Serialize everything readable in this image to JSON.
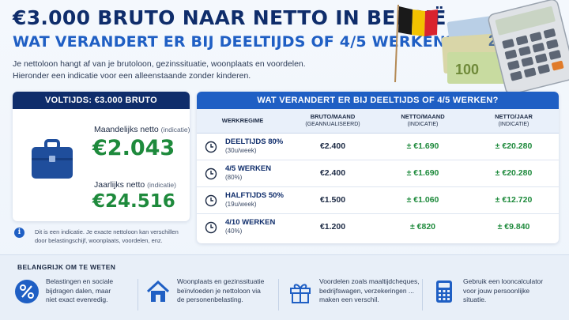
{
  "header": {
    "title": "€3.000 BRUTO NAAR NETTO IN BELGIË",
    "subtitle": "WAT VERANDERT ER BIJ DEELTIJDS OF 4/5 WERKEN?",
    "intro_line1": "Je nettoloon hangt af van je brutoloon, gezinssituatie, woonplaats en voordelen.",
    "intro_line2": "Hieronder een indicatie voor een alleenstaande zonder kinderen."
  },
  "hero": {
    "banknote_label": "100",
    "banknote_label2": "20",
    "calculator_display": ""
  },
  "fulltime": {
    "heading": "VOLTIJDS: €3.000 BRUTO",
    "monthly_label": "Maandelijks netto",
    "monthly_hint": "(indicatie)",
    "monthly_value": "€2.043",
    "yearly_label": "Jaarlijks netto",
    "yearly_hint": "(indicatie)",
    "yearly_value": "€24.516"
  },
  "note": {
    "icon": "i",
    "line1": "Dit is een indicatie. Je exacte nettoloon kan verschillen",
    "line2": "door belastingschijf, woonplaats, voordelen, enz."
  },
  "table": {
    "heading": "WAT VERANDERT ER BIJ DEELTIJDS OF 4/5 WERKEN?",
    "columns": [
      {
        "label": "WERKREGIME",
        "sub": ""
      },
      {
        "label": "BRUTO/MAAND",
        "sub": "(GEANNUALISEERD)"
      },
      {
        "label": "NETTO/MAAND",
        "sub": "(INDICATIE)"
      },
      {
        "label": "NETTO/JAAR",
        "sub": "(INDICATIE)"
      }
    ],
    "rows": [
      {
        "regime": "DEELTIJDS 80%",
        "detail": "(30u/week)",
        "bruto": "€2.400",
        "netto_maand": "± €1.690",
        "netto_jaar": "± €20.280"
      },
      {
        "regime": "4/5 WERKEN",
        "detail": "(80%)",
        "bruto": "€2.400",
        "netto_maand": "± €1.690",
        "netto_jaar": "± €20.280"
      },
      {
        "regime": "HALFTIJDS 50%",
        "detail": "(19u/week)",
        "bruto": "€1.500",
        "netto_maand": "± €1.060",
        "netto_jaar": "± €12.720"
      },
      {
        "regime": "4/10 WERKEN",
        "detail": "(40%)",
        "bruto": "€1.200",
        "netto_maand": "± €820",
        "netto_jaar": "± €9.840"
      }
    ]
  },
  "tips": {
    "title": "BELANGRIJK OM TE WETEN",
    "items": [
      {
        "icon": "percent-icon",
        "lines": [
          "Belastingen en sociale",
          "bijdragen dalen, maar",
          "niet exact evenredig."
        ]
      },
      {
        "icon": "house-icon",
        "lines": [
          "Woonplaats en gezinssituatie",
          "beïnvloeden je nettoloon via",
          "de personenbelasting."
        ]
      },
      {
        "icon": "gift-icon",
        "lines": [
          "Voordelen zoals maaltijdcheques,",
          "bedrijfswagen, verzekeringen ...",
          "maken een verschil."
        ]
      },
      {
        "icon": "calculator-icon",
        "lines": [
          "Gebruik een looncalculator",
          "voor jouw persoonlijke",
          "situatie."
        ]
      }
    ]
  },
  "colors": {
    "navy": "#0f2d6b",
    "blue": "#1f5fc4",
    "green": "#1e8a3c"
  }
}
